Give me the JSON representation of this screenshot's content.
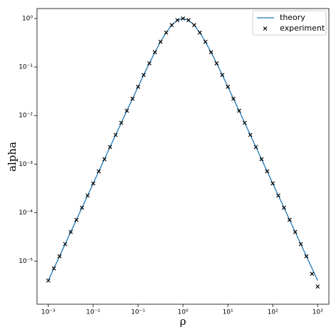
{
  "chart_data": {
    "type": "line",
    "xlabel": "ρ",
    "ylabel": "alpha",
    "xscale": "log",
    "yscale": "log",
    "x": [
      0.001,
      0.00133,
      0.00178,
      0.00237,
      0.00316,
      0.00422,
      0.00562,
      0.0075,
      0.01,
      0.0133,
      0.0178,
      0.0237,
      0.0316,
      0.0422,
      0.0562,
      0.075,
      0.1,
      0.133,
      0.178,
      0.237,
      0.316,
      0.422,
      0.562,
      0.75,
      1,
      1.33,
      1.78,
      2.37,
      3.16,
      4.22,
      5.62,
      7.5,
      10,
      13.3,
      17.8,
      23.7,
      31.6,
      42.2,
      56.2,
      75,
      100,
      133,
      178,
      237,
      316,
      422,
      562,
      750,
      1000
    ],
    "series": [
      {
        "name": "theory",
        "color": "#1f77b4",
        "style": "line",
        "values": [
          4e-06,
          7.11e-06,
          1.265e-05,
          2.249e-05,
          4e-05,
          7.11e-05,
          0.0001265,
          0.0002249,
          0.0004,
          0.000711,
          0.001264,
          0.002247,
          0.003992,
          0.007087,
          0.01257,
          0.02224,
          0.0392,
          0.06866,
          0.1189,
          0.2016,
          0.3306,
          0.5127,
          0.7302,
          0.9215,
          1,
          0.9215,
          0.7302,
          0.5127,
          0.3306,
          0.2016,
          0.1189,
          0.06866,
          0.0392,
          0.02224,
          0.01257,
          0.007087,
          0.003992,
          0.002247,
          0.001264,
          0.000711,
          0.0004,
          0.0002249,
          0.0001265,
          7.11e-05,
          4e-05,
          2.249e-05,
          1.265e-05,
          7.11e-06,
          4e-06
        ]
      },
      {
        "name": "experiment",
        "color": "#000000",
        "style": "marker",
        "values": [
          4e-06,
          7.11e-06,
          1.265e-05,
          2.249e-05,
          4e-05,
          7.11e-05,
          0.0001265,
          0.0002249,
          0.0004,
          0.000711,
          0.001264,
          0.002247,
          0.003992,
          0.007087,
          0.01257,
          0.02224,
          0.0392,
          0.06866,
          0.1189,
          0.2016,
          0.3306,
          0.5127,
          0.7302,
          0.9215,
          1,
          0.9215,
          0.7302,
          0.5127,
          0.3306,
          0.2016,
          0.1189,
          0.06866,
          0.0392,
          0.02224,
          0.01257,
          0.007087,
          0.003992,
          0.002247,
          0.001264,
          0.000711,
          0.0004,
          0.0002249,
          0.0001265,
          7.11e-05,
          4e-05,
          2.249e-05,
          1.265e-05,
          5.5e-06,
          3e-06
        ]
      }
    ],
    "xlim": [
      0.00056,
      1780
    ],
    "ylim": [
      1.3e-06,
      1.6
    ],
    "xticks": [
      {
        "value": 0.001,
        "label": "10⁻³"
      },
      {
        "value": 0.01,
        "label": "10⁻²"
      },
      {
        "value": 0.1,
        "label": "10⁻¹"
      },
      {
        "value": 1,
        "label": "10⁰"
      },
      {
        "value": 10,
        "label": "10¹"
      },
      {
        "value": 100,
        "label": "10²"
      },
      {
        "value": 1000,
        "label": "10³"
      }
    ],
    "yticks": [
      {
        "value": 1e-05,
        "label": "10⁻⁵"
      },
      {
        "value": 0.0001,
        "label": "10⁻⁴"
      },
      {
        "value": 0.001,
        "label": "10⁻³"
      },
      {
        "value": 0.01,
        "label": "10⁻²"
      },
      {
        "value": 0.1,
        "label": "10⁻¹"
      },
      {
        "value": 1,
        "label": "10⁰"
      }
    ],
    "legend": "upper right"
  }
}
